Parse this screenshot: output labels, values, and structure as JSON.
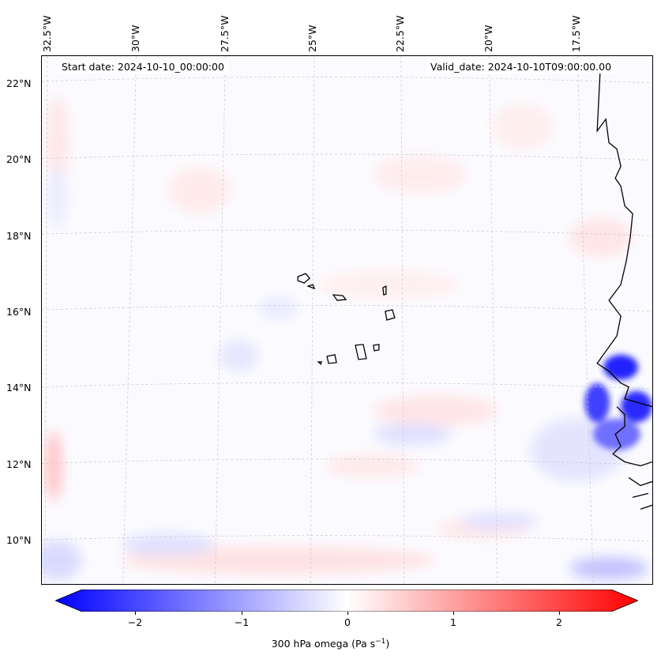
{
  "header": {
    "start_date": "Start date: 2024-10-10_00:00:00",
    "valid_date": "Valid_date: 2024-10-10T09:00:00.00"
  },
  "map": {
    "longitude_labels": [
      "32.5°W",
      "30°W",
      "27.5°W",
      "25°W",
      "22.5°W",
      "20°W",
      "17.5°W"
    ],
    "latitude_labels": [
      "22°N",
      "20°N",
      "18°N",
      "16°N",
      "14°N",
      "12°N",
      "10°N"
    ],
    "gridlines": true,
    "coastline_color": "#000000"
  },
  "colorbar": {
    "ticks": [
      "−2",
      "−1",
      "0",
      "1",
      "2"
    ],
    "label": "300 hPa omega (Pa s",
    "label_sup": "−1",
    "label_end": ")",
    "min_color": "#0000ff",
    "mid_color": "#ffffff",
    "max_color": "#ff0000",
    "range": [
      -2.5,
      2.5
    ]
  }
}
